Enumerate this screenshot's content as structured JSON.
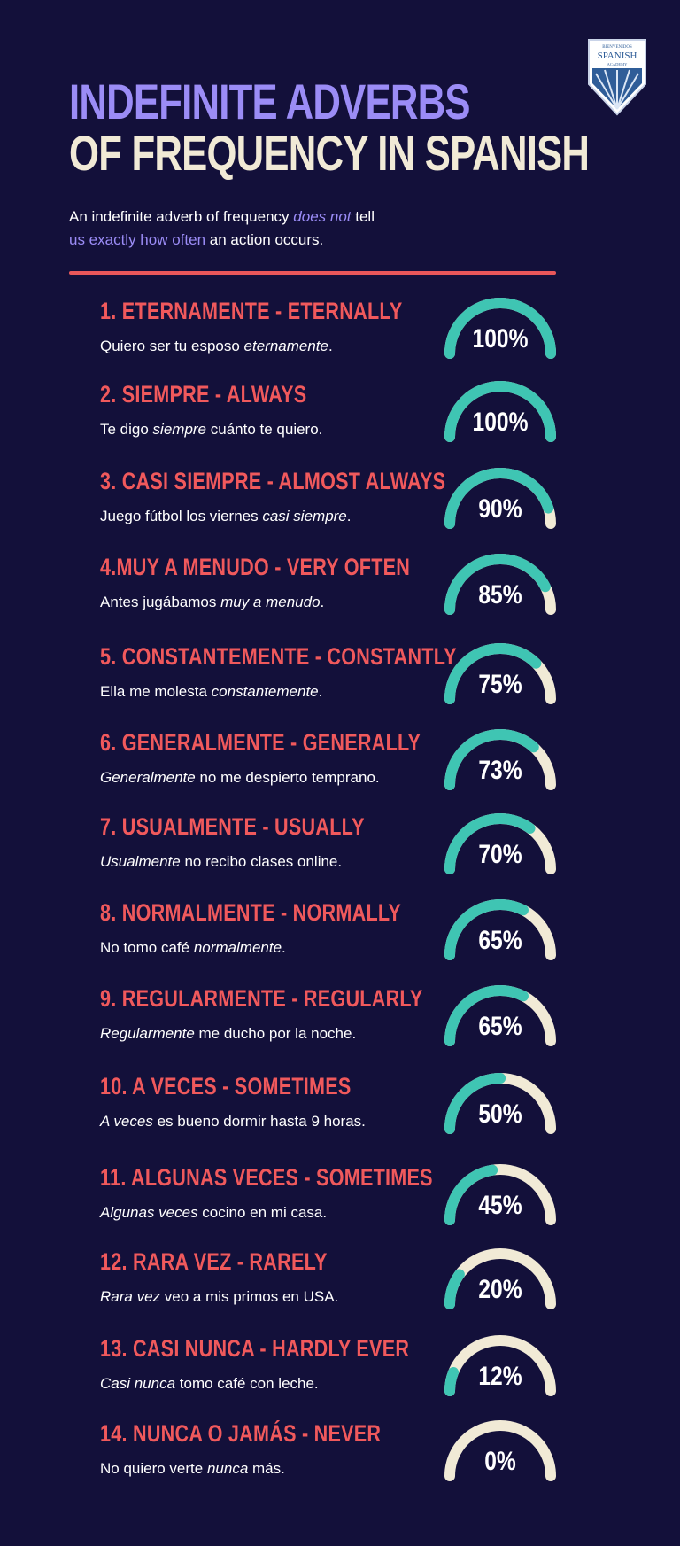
{
  "logo": {
    "top_text": "BIENVENIDOS",
    "name": "SPANISH",
    "sub": "ACADEMY"
  },
  "title": {
    "line1": "INDEFINITE ADVERBS",
    "line2": "OF FREQUENCY IN SPANISH"
  },
  "intro": {
    "p1": "An indefinite adverb of frequency ",
    "p2": "does not",
    "p3": " tell",
    "p4": "us exactly how often",
    "p5": " an action occurs."
  },
  "colors": {
    "background": "#13103a",
    "heading": "#f0595c",
    "accent": "#9b8cf6",
    "cream": "#f1ead6",
    "teal": "#3fc5b3"
  },
  "items": [
    {
      "heading": "1. ETERNAMENTE - ETERNALLY",
      "pre": "Quiero ser tu esposo ",
      "em": "eternamente",
      "post": ".",
      "pct": "100%",
      "value": 1.0
    },
    {
      "heading": "2. SIEMPRE - ALWAYS",
      "pre": "Te digo ",
      "em": "siempre",
      "post": " cuánto te quiero.",
      "pct": "100%",
      "value": 1.0
    },
    {
      "heading": "3. CASI SIEMPRE - ALMOST ALWAYS",
      "pre": "Juego fútbol los viernes ",
      "em": "casi siempre",
      "post": ".",
      "pct": "90%",
      "value": 0.9
    },
    {
      "heading": "4.MUY A MENUDO - VERY OFTEN",
      "pre": "Antes jugábamos ",
      "em": "muy a menudo",
      "post": ".",
      "pct": "85%",
      "value": 0.85
    },
    {
      "heading": "5. CONSTANTEMENTE - CONSTANTLY",
      "pre": "Ella me molesta ",
      "em": "constantemente",
      "post": ".",
      "pct": "75%",
      "value": 0.75
    },
    {
      "heading": "6. GENERALMENTE -  GENERALLY",
      "pre": "",
      "em": "Generalmente",
      "post": " no me despierto temprano.",
      "pct": "73%",
      "value": 0.73
    },
    {
      "heading": "7. USUALMENTE - USUALLY",
      "pre": "",
      "em": "Usualmente",
      "post": " no recibo clases online.",
      "pct": "70%",
      "value": 0.7
    },
    {
      "heading": "8. NORMALMENTE - NORMALLY",
      "pre": "No tomo café ",
      "em": "normalmente",
      "post": ".",
      "pct": "65%",
      "value": 0.65
    },
    {
      "heading": "9. REGULARMENTE - REGULARLY",
      "pre": "",
      "em": "Regularmente",
      "post": " me ducho por la noche.",
      "pct": "65%",
      "value": 0.65
    },
    {
      "heading": "10. A VECES - SOMETIMES",
      "pre": "",
      "em": "A veces",
      "post": " es bueno dormir hasta 9 horas.",
      "pct": "50%",
      "value": 0.5
    },
    {
      "heading": "11. ALGUNAS VECES - SOMETIMES",
      "pre": "",
      "em": "Algunas veces",
      "post": " cocino en mi casa.",
      "pct": "45%",
      "value": 0.45
    },
    {
      "heading": "12. RARA VEZ - RARELY",
      "pre": "",
      "em": "Rara vez",
      "post": " veo a mis primos en USA.",
      "pct": "20%",
      "value": 0.2
    },
    {
      "heading": "13. CASI NUNCA - HARDLY EVER",
      "pre": "",
      "em": "Casi nunca",
      "post": " tomo café con leche.",
      "pct": "12%",
      "value": 0.12
    },
    {
      "heading": "14. NUNCA O JAMÁS - NEVER",
      "pre": "No quiero verte ",
      "em": "nunca",
      "post": " más.",
      "pct": "0%",
      "value": 0.0
    }
  ]
}
